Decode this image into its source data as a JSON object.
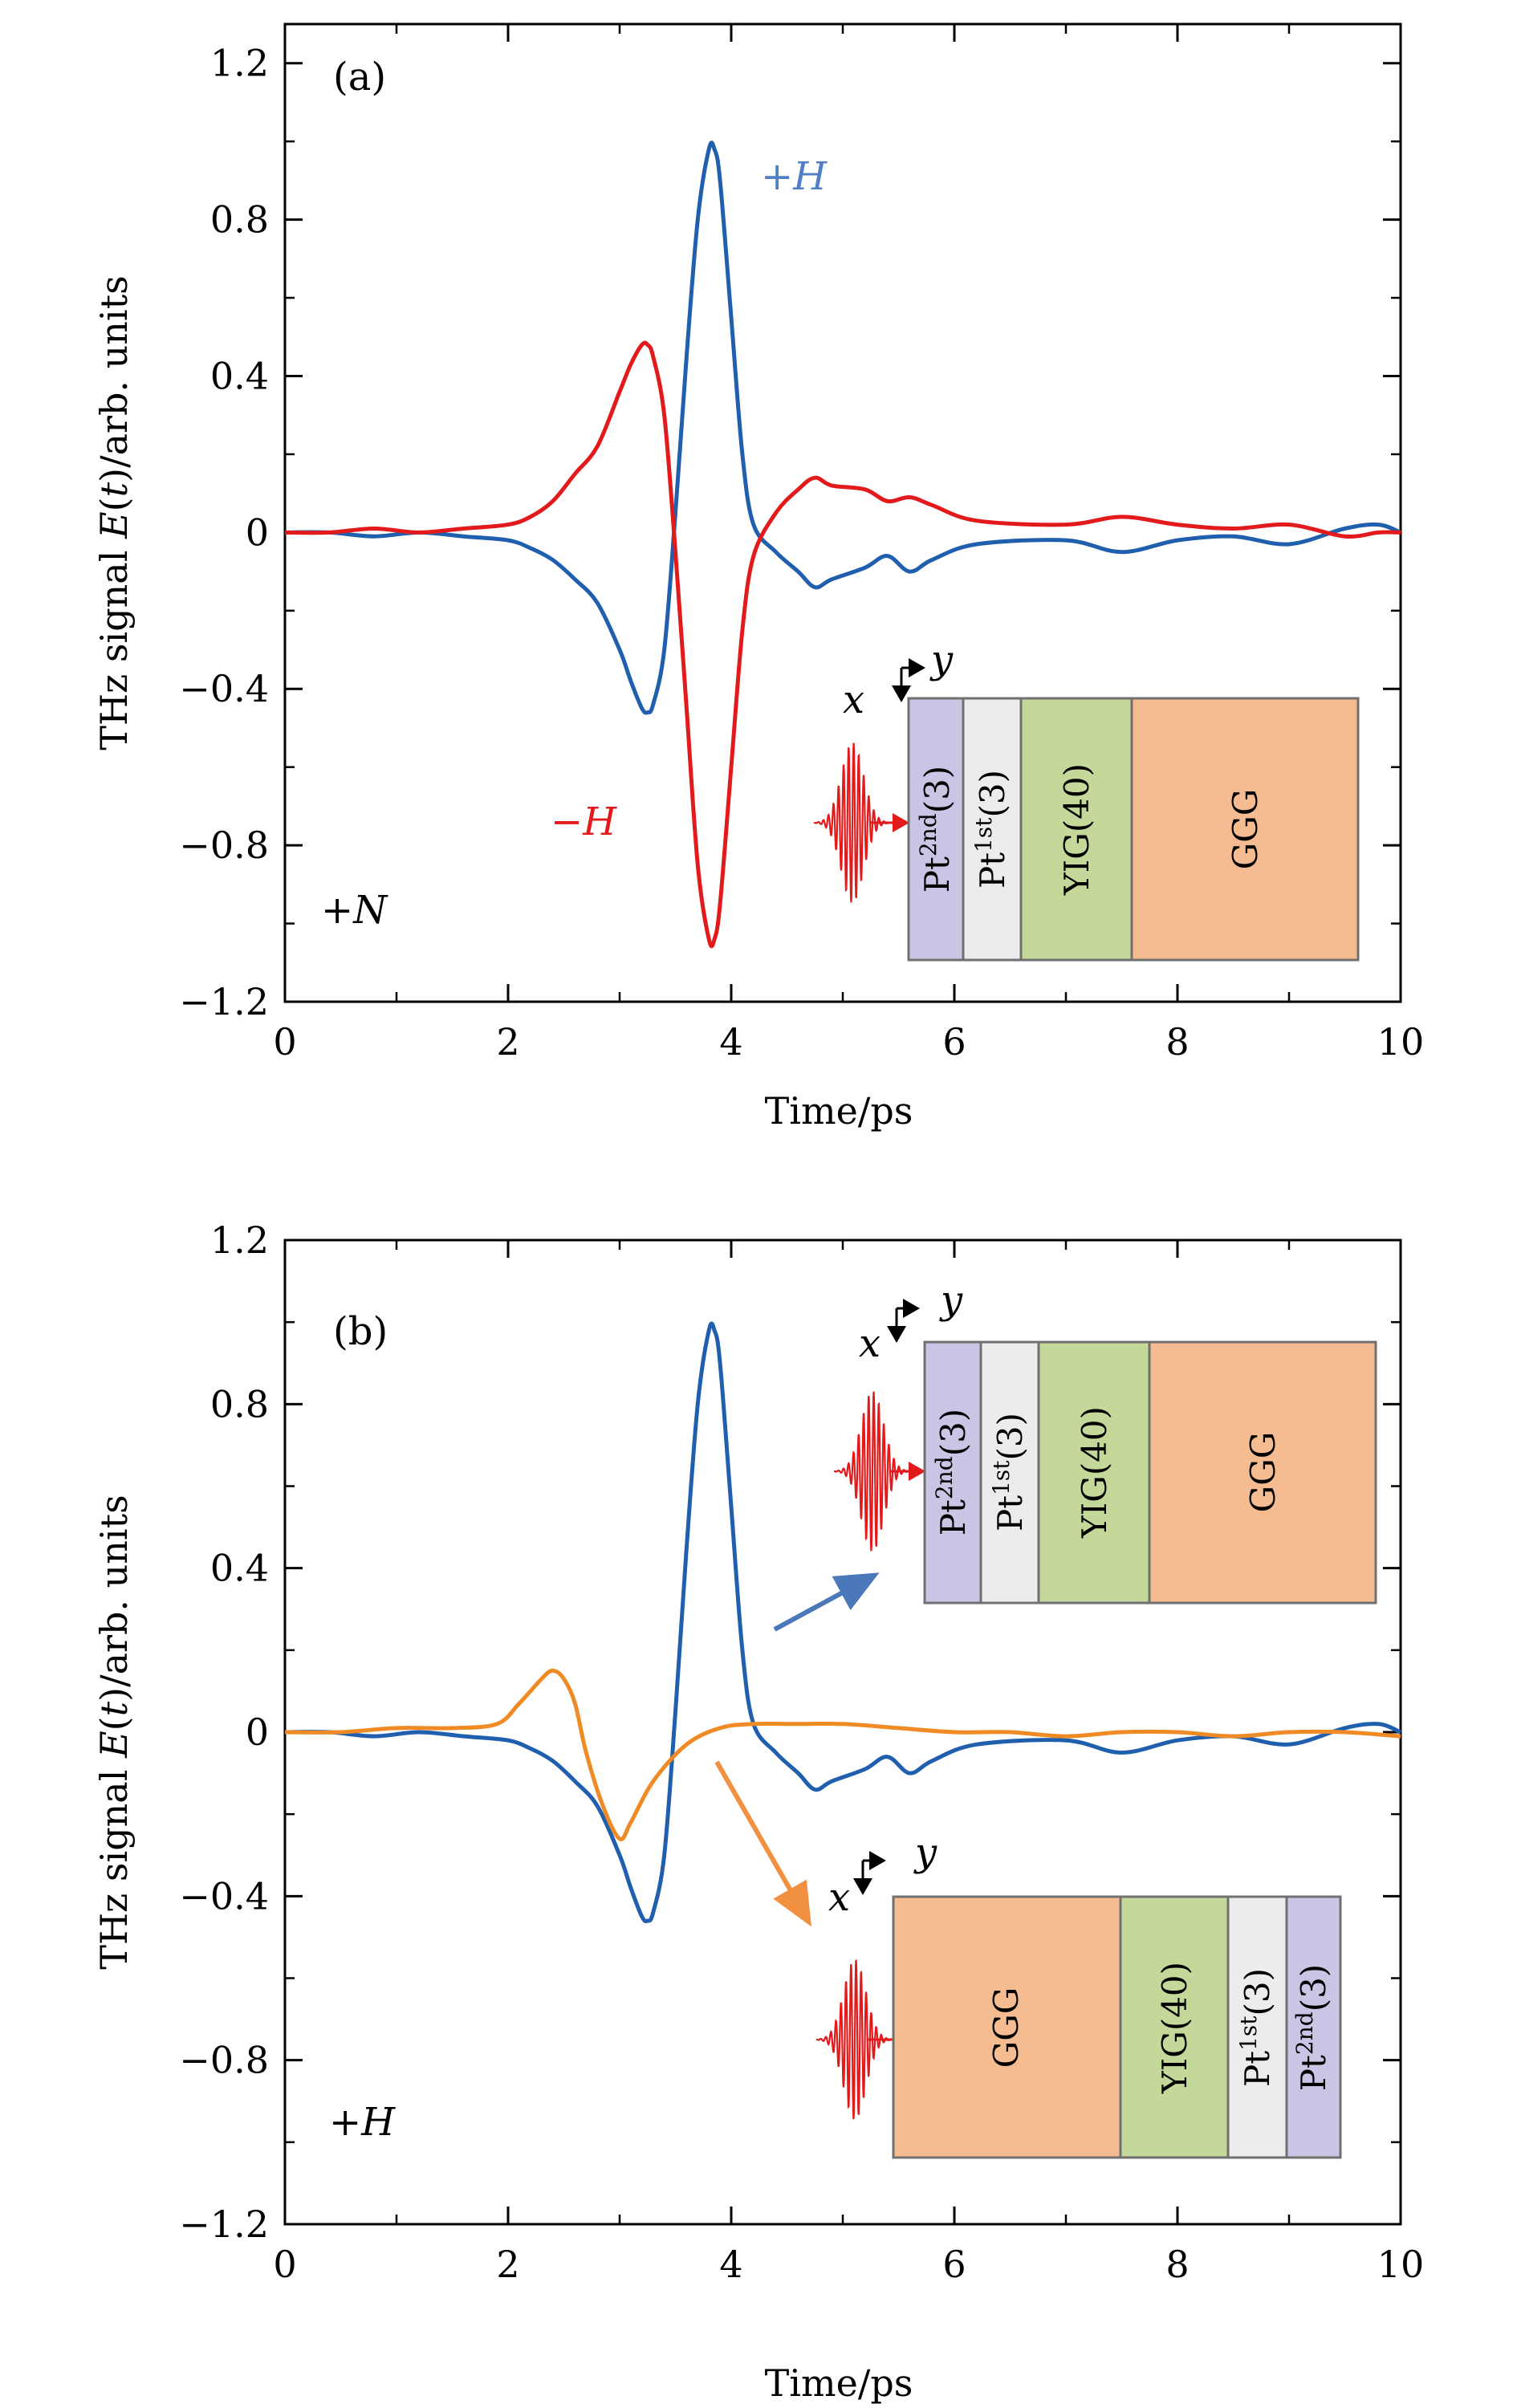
{
  "colors": {
    "plus_h": "#1f5fae",
    "minus_h": "#e31a1c",
    "reversed": "#f08a24",
    "plus_h_label": "#4f7fc4",
    "minus_h_label": "#e31a1c",
    "layer_pt2": "#c8c6e4",
    "layer_pt1": "#ececec",
    "layer_yig": "#c4d89a",
    "layer_ggg": "#f4bc90",
    "arrow_blue": "#4a78b8",
    "arrow_orange": "#f09040"
  },
  "chart_data": [
    {
      "type": "line",
      "panel_label": "(a)",
      "xlabel": "Time/ps",
      "ylabel_parts": [
        "THz signal ",
        "E",
        "(",
        "t",
        ")/arb. units"
      ],
      "xlim": [
        0,
        10
      ],
      "ylim": [
        -1.2,
        1.3
      ],
      "xticks": [
        0,
        2,
        4,
        6,
        8,
        10
      ],
      "xtick_labels": [
        "0",
        "2",
        "4",
        "6",
        "8",
        "10"
      ],
      "yticks": [
        -1.2,
        -0.8,
        -0.4,
        0,
        0.4,
        0.8,
        1.2
      ],
      "ytick_labels": [
        "−1.2",
        "−0.8",
        "−0.4",
        "0",
        "0.4",
        "0.8",
        "1.2"
      ],
      "grid": false,
      "legend": "none",
      "series": [
        {
          "name": "+H",
          "color": "#1f5fae",
          "points": [
            [
              0,
              0
            ],
            [
              0.4,
              0.0
            ],
            [
              0.8,
              -0.01
            ],
            [
              1.2,
              0.0
            ],
            [
              1.6,
              -0.01
            ],
            [
              2.0,
              -0.02
            ],
            [
              2.2,
              -0.04
            ],
            [
              2.4,
              -0.07
            ],
            [
              2.6,
              -0.12
            ],
            [
              2.8,
              -0.18
            ],
            [
              3.0,
              -0.3
            ],
            [
              3.1,
              -0.38
            ],
            [
              3.2,
              -0.45
            ],
            [
              3.25,
              -0.46
            ],
            [
              3.3,
              -0.44
            ],
            [
              3.4,
              -0.3
            ],
            [
              3.5,
              0.05
            ],
            [
              3.6,
              0.45
            ],
            [
              3.7,
              0.8
            ],
            [
              3.8,
              0.98
            ],
            [
              3.85,
              0.98
            ],
            [
              3.9,
              0.9
            ],
            [
              4.0,
              0.55
            ],
            [
              4.1,
              0.2
            ],
            [
              4.2,
              0.02
            ],
            [
              4.4,
              -0.05
            ],
            [
              4.6,
              -0.1
            ],
            [
              4.75,
              -0.14
            ],
            [
              4.9,
              -0.12
            ],
            [
              5.2,
              -0.09
            ],
            [
              5.4,
              -0.06
            ],
            [
              5.6,
              -0.1
            ],
            [
              5.8,
              -0.07
            ],
            [
              6.2,
              -0.03
            ],
            [
              7.0,
              -0.02
            ],
            [
              7.5,
              -0.05
            ],
            [
              8.0,
              -0.02
            ],
            [
              8.5,
              -0.01
            ],
            [
              9.0,
              -0.03
            ],
            [
              9.5,
              0.01
            ],
            [
              9.8,
              0.02
            ],
            [
              10.0,
              0.0
            ]
          ]
        },
        {
          "name": "−H",
          "color": "#e31a1c",
          "points": [
            [
              0,
              0
            ],
            [
              0.4,
              0.0
            ],
            [
              0.8,
              0.01
            ],
            [
              1.2,
              0.0
            ],
            [
              1.6,
              0.01
            ],
            [
              2.0,
              0.02
            ],
            [
              2.2,
              0.04
            ],
            [
              2.4,
              0.08
            ],
            [
              2.6,
              0.15
            ],
            [
              2.8,
              0.22
            ],
            [
              3.0,
              0.36
            ],
            [
              3.1,
              0.43
            ],
            [
              3.2,
              0.48
            ],
            [
              3.25,
              0.48
            ],
            [
              3.3,
              0.45
            ],
            [
              3.4,
              0.3
            ],
            [
              3.5,
              -0.05
            ],
            [
              3.6,
              -0.45
            ],
            [
              3.7,
              -0.85
            ],
            [
              3.8,
              -1.04
            ],
            [
              3.85,
              -1.04
            ],
            [
              3.9,
              -0.95
            ],
            [
              4.0,
              -0.6
            ],
            [
              4.1,
              -0.25
            ],
            [
              4.2,
              -0.06
            ],
            [
              4.4,
              0.05
            ],
            [
              4.6,
              0.11
            ],
            [
              4.75,
              0.14
            ],
            [
              4.9,
              0.12
            ],
            [
              5.2,
              0.11
            ],
            [
              5.4,
              0.08
            ],
            [
              5.6,
              0.09
            ],
            [
              5.8,
              0.07
            ],
            [
              6.2,
              0.03
            ],
            [
              7.0,
              0.02
            ],
            [
              7.5,
              0.04
            ],
            [
              8.0,
              0.02
            ],
            [
              8.5,
              0.01
            ],
            [
              9.0,
              0.02
            ],
            [
              9.5,
              -0.01
            ],
            [
              9.8,
              0.0
            ],
            [
              10.0,
              0.0
            ]
          ]
        }
      ],
      "annotations": [
        {
          "text_parts": [
            "+",
            "H"
          ],
          "color_key": "plus_h_label"
        },
        {
          "text_parts": [
            "−",
            "H"
          ],
          "color_key": "minus_h_label"
        },
        {
          "text_parts": [
            "+",
            "N"
          ],
          "color_key": "black"
        }
      ],
      "inset_axes": {
        "x": "x",
        "y": "y"
      },
      "inset_layers": [
        {
          "base": "Pt",
          "sup": "2nd",
          "tail": "(3)",
          "color_key": "layer_pt2"
        },
        {
          "base": "Pt",
          "sup": "1st",
          "tail": "(3)",
          "color_key": "layer_pt1"
        },
        {
          "base": "YIG(40)",
          "sup": "",
          "tail": "",
          "color_key": "layer_yig"
        },
        {
          "base": "GGG",
          "sup": "",
          "tail": "",
          "color_key": "layer_ggg"
        }
      ]
    },
    {
      "type": "line",
      "panel_label": "(b)",
      "xlabel": "Time/ps",
      "ylabel_parts": [
        "THz signal ",
        "E",
        "(",
        "t",
        ")/arb. units"
      ],
      "xlim": [
        0,
        10
      ],
      "ylim": [
        -1.2,
        1.2
      ],
      "xticks": [
        0,
        2,
        4,
        6,
        8,
        10
      ],
      "xtick_labels": [
        "0",
        "2",
        "4",
        "6",
        "8",
        "10"
      ],
      "yticks": [
        -1.2,
        -0.8,
        -0.4,
        0,
        0.4,
        0.8,
        1.2
      ],
      "ytick_labels": [
        "−1.2",
        "−0.8",
        "−0.4",
        "0",
        "0.4",
        "0.8",
        "1.2"
      ],
      "grid": false,
      "legend": "none",
      "series": [
        {
          "name": "",
          "color": "#1f5fae",
          "points": [
            [
              0,
              0
            ],
            [
              0.4,
              0.0
            ],
            [
              0.8,
              -0.01
            ],
            [
              1.2,
              0.0
            ],
            [
              1.6,
              -0.01
            ],
            [
              2.0,
              -0.02
            ],
            [
              2.2,
              -0.04
            ],
            [
              2.4,
              -0.07
            ],
            [
              2.6,
              -0.12
            ],
            [
              2.8,
              -0.18
            ],
            [
              3.0,
              -0.3
            ],
            [
              3.1,
              -0.38
            ],
            [
              3.2,
              -0.45
            ],
            [
              3.25,
              -0.46
            ],
            [
              3.3,
              -0.44
            ],
            [
              3.4,
              -0.3
            ],
            [
              3.5,
              0.05
            ],
            [
              3.6,
              0.45
            ],
            [
              3.7,
              0.8
            ],
            [
              3.8,
              0.98
            ],
            [
              3.85,
              0.98
            ],
            [
              3.9,
              0.9
            ],
            [
              4.0,
              0.55
            ],
            [
              4.1,
              0.2
            ],
            [
              4.2,
              0.02
            ],
            [
              4.4,
              -0.05
            ],
            [
              4.6,
              -0.1
            ],
            [
              4.75,
              -0.14
            ],
            [
              4.9,
              -0.12
            ],
            [
              5.2,
              -0.09
            ],
            [
              5.4,
              -0.06
            ],
            [
              5.6,
              -0.1
            ],
            [
              5.8,
              -0.07
            ],
            [
              6.2,
              -0.03
            ],
            [
              7.0,
              -0.02
            ],
            [
              7.5,
              -0.05
            ],
            [
              8.0,
              -0.02
            ],
            [
              8.5,
              -0.01
            ],
            [
              9.0,
              -0.03
            ],
            [
              9.5,
              0.01
            ],
            [
              9.8,
              0.02
            ],
            [
              10.0,
              0.0
            ]
          ]
        },
        {
          "name": "",
          "color": "#f08a24",
          "points": [
            [
              0,
              0
            ],
            [
              0.5,
              0.0
            ],
            [
              1.0,
              0.01
            ],
            [
              1.5,
              0.01
            ],
            [
              1.9,
              0.02
            ],
            [
              2.1,
              0.07
            ],
            [
              2.3,
              0.13
            ],
            [
              2.4,
              0.15
            ],
            [
              2.5,
              0.13
            ],
            [
              2.6,
              0.07
            ],
            [
              2.7,
              -0.05
            ],
            [
              2.85,
              -0.18
            ],
            [
              3.0,
              -0.26
            ],
            [
              3.1,
              -0.22
            ],
            [
              3.3,
              -0.12
            ],
            [
              3.6,
              -0.03
            ],
            [
              3.9,
              0.01
            ],
            [
              4.2,
              0.02
            ],
            [
              4.6,
              0.02
            ],
            [
              5.0,
              0.02
            ],
            [
              5.5,
              0.01
            ],
            [
              6.0,
              0.0
            ],
            [
              6.5,
              0.0
            ],
            [
              7.0,
              -0.01
            ],
            [
              7.5,
              0.0
            ],
            [
              8.0,
              0.0
            ],
            [
              8.5,
              -0.01
            ],
            [
              9.0,
              0.0
            ],
            [
              9.5,
              0.0
            ],
            [
              10.0,
              -0.01
            ]
          ]
        }
      ],
      "annotations": [
        {
          "text_parts": [
            "+",
            "H"
          ],
          "color_key": "black"
        }
      ],
      "inset_axes": {
        "x": "x",
        "y": "y"
      },
      "inset_top_layers": [
        {
          "base": "Pt",
          "sup": "2nd",
          "tail": "(3)",
          "color_key": "layer_pt2"
        },
        {
          "base": "Pt",
          "sup": "1st",
          "tail": "(3)",
          "color_key": "layer_pt1"
        },
        {
          "base": "YIG(40)",
          "sup": "",
          "tail": "",
          "color_key": "layer_yig"
        },
        {
          "base": "GGG",
          "sup": "",
          "tail": "",
          "color_key": "layer_ggg"
        }
      ],
      "inset_bottom_layers": [
        {
          "base": "GGG",
          "sup": "",
          "tail": "",
          "color_key": "layer_ggg"
        },
        {
          "base": "YIG(40)",
          "sup": "",
          "tail": "",
          "color_key": "layer_yig"
        },
        {
          "base": "Pt",
          "sup": "1st",
          "tail": "(3)",
          "color_key": "layer_pt1"
        },
        {
          "base": "Pt",
          "sup": "2nd",
          "tail": "(3)",
          "color_key": "layer_pt2"
        }
      ]
    }
  ]
}
